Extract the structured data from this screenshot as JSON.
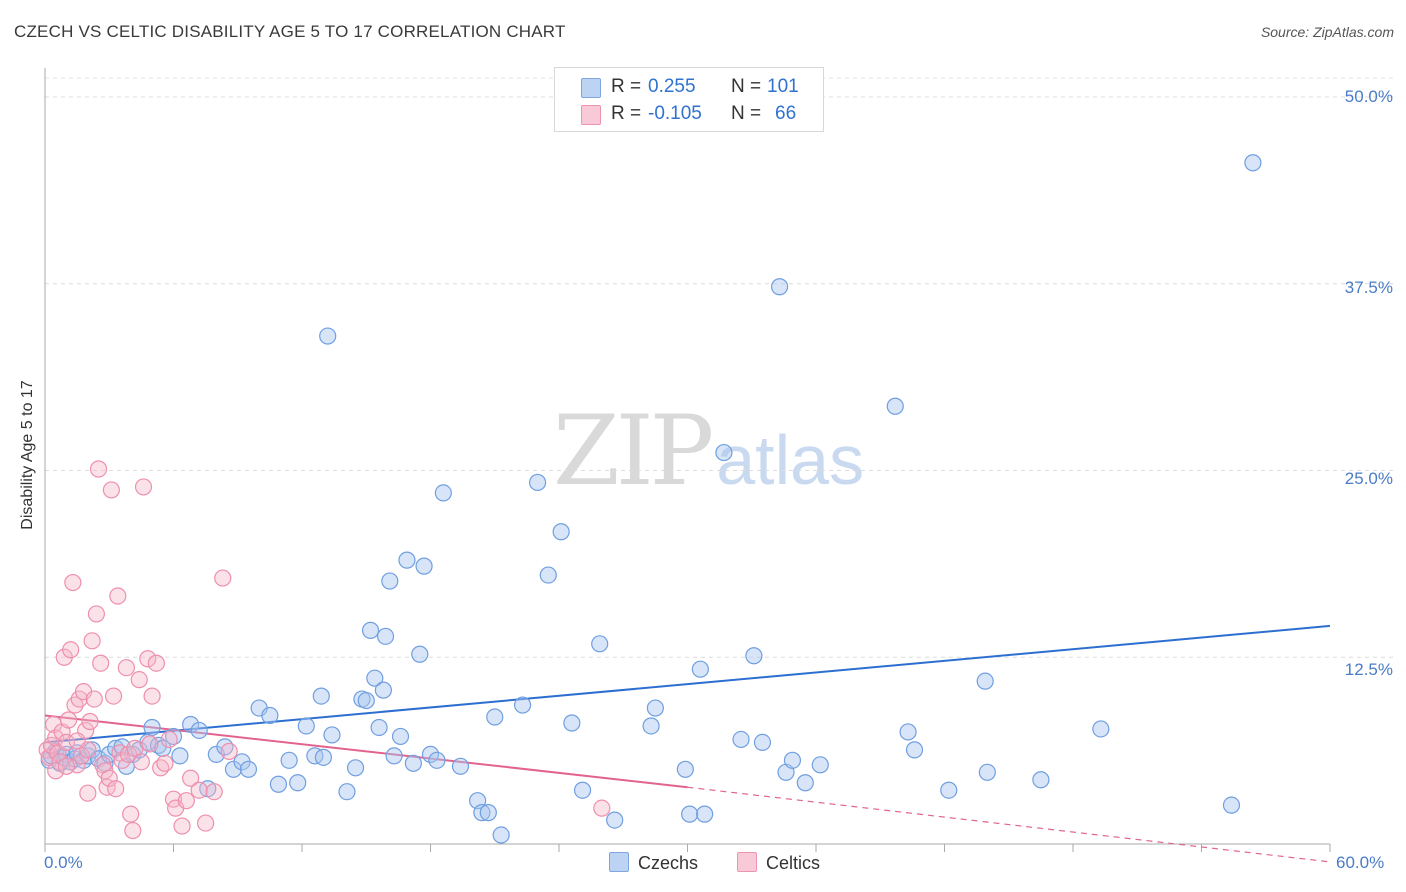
{
  "title": "CZECH VS CELTIC DISABILITY AGE 5 TO 17 CORRELATION CHART",
  "source": "Source: ZipAtlas.com",
  "watermark": {
    "zip": "ZIP",
    "atlas": "atlas"
  },
  "legend": {
    "r_label": "R =",
    "n_label": "N =",
    "rows": [
      {
        "r": "0.255",
        "n": "101",
        "color": "#a9c6f0"
      },
      {
        "r": "-0.105",
        "n": "66",
        "color": "#f6b7c9"
      }
    ]
  },
  "bottom_legend": [
    "Czechs",
    "Celtics"
  ],
  "chart_data": {
    "type": "scatter",
    "title": "CZECH VS CELTIC DISABILITY AGE 5 TO 17 CORRELATION CHART",
    "xlabel": "",
    "ylabel": "Disability Age 5 to 17",
    "xlim": [
      0,
      60
    ],
    "ylim": [
      0,
      50
    ],
    "x_tick_labels": [
      "0.0%",
      "60.0%"
    ],
    "y_tick_values": [
      12.5,
      25.0,
      37.5,
      50.0
    ],
    "y_tick_labels": [
      "12.5%",
      "25.0%",
      "37.5%",
      "50.0%"
    ],
    "grid": true,
    "series": [
      {
        "name": "Czechs",
        "color": "#6f9fe0",
        "trend": {
          "x": [
            0,
            60
          ],
          "y": [
            6.8,
            14.6
          ],
          "color": "#2d6fd1"
        },
        "points": [
          [
            0.2,
            5.6
          ],
          [
            0.3,
            5.9
          ],
          [
            0.5,
            6.2
          ],
          [
            0.7,
            5.4
          ],
          [
            0.9,
            5.8
          ],
          [
            1.0,
            6.0
          ],
          [
            1.2,
            5.5
          ],
          [
            1.4,
            5.7
          ],
          [
            1.5,
            6.1
          ],
          [
            1.8,
            5.6
          ],
          [
            2.0,
            5.9
          ],
          [
            2.2,
            6.3
          ],
          [
            2.5,
            5.7
          ],
          [
            2.8,
            5.4
          ],
          [
            3.0,
            6.0
          ],
          [
            3.3,
            6.4
          ],
          [
            3.6,
            6.5
          ],
          [
            3.8,
            5.2
          ],
          [
            4.1,
            6.0
          ],
          [
            4.4,
            6.3
          ],
          [
            4.8,
            6.8
          ],
          [
            5.0,
            7.8
          ],
          [
            5.3,
            6.6
          ],
          [
            5.5,
            6.4
          ],
          [
            6.0,
            7.2
          ],
          [
            6.3,
            5.9
          ],
          [
            6.8,
            8.0
          ],
          [
            7.2,
            7.6
          ],
          [
            7.6,
            3.7
          ],
          [
            8.0,
            6.0
          ],
          [
            8.4,
            6.5
          ],
          [
            8.8,
            5.0
          ],
          [
            9.2,
            5.5
          ],
          [
            9.5,
            5.0
          ],
          [
            10.0,
            9.1
          ],
          [
            10.5,
            8.6
          ],
          [
            10.9,
            4.0
          ],
          [
            11.4,
            5.6
          ],
          [
            11.8,
            4.1
          ],
          [
            12.2,
            7.9
          ],
          [
            12.6,
            5.9
          ],
          [
            13.0,
            5.8
          ],
          [
            13.4,
            7.3
          ],
          [
            13.2,
            34.0
          ],
          [
            12.9,
            9.9
          ],
          [
            14.1,
            3.5
          ],
          [
            14.5,
            5.1
          ],
          [
            14.8,
            9.7
          ],
          [
            15.0,
            9.6
          ],
          [
            15.2,
            14.3
          ],
          [
            15.4,
            11.1
          ],
          [
            15.6,
            7.8
          ],
          [
            15.8,
            10.3
          ],
          [
            15.9,
            13.9
          ],
          [
            16.1,
            17.6
          ],
          [
            16.3,
            5.9
          ],
          [
            16.6,
            7.2
          ],
          [
            16.9,
            19.0
          ],
          [
            17.2,
            5.4
          ],
          [
            17.5,
            12.7
          ],
          [
            17.7,
            18.6
          ],
          [
            18.0,
            6.0
          ],
          [
            18.3,
            5.6
          ],
          [
            18.6,
            23.5
          ],
          [
            19.4,
            5.2
          ],
          [
            20.2,
            2.9
          ],
          [
            20.4,
            2.1
          ],
          [
            20.7,
            2.1
          ],
          [
            21.0,
            8.5
          ],
          [
            21.3,
            0.6
          ],
          [
            22.3,
            9.3
          ],
          [
            23.0,
            24.2
          ],
          [
            23.5,
            18.0
          ],
          [
            24.1,
            20.9
          ],
          [
            24.6,
            8.1
          ],
          [
            25.1,
            3.6
          ],
          [
            25.9,
            13.4
          ],
          [
            26.6,
            1.6
          ],
          [
            28.3,
            7.9
          ],
          [
            28.5,
            9.1
          ],
          [
            29.9,
            5.0
          ],
          [
            30.1,
            2.0
          ],
          [
            30.6,
            11.7
          ],
          [
            30.8,
            2.0
          ],
          [
            31.7,
            26.2
          ],
          [
            32.5,
            7.0
          ],
          [
            33.1,
            12.6
          ],
          [
            33.5,
            6.8
          ],
          [
            34.3,
            37.3
          ],
          [
            34.6,
            4.8
          ],
          [
            34.9,
            5.6
          ],
          [
            35.5,
            4.1
          ],
          [
            36.2,
            5.3
          ],
          [
            39.7,
            29.3
          ],
          [
            40.3,
            7.5
          ],
          [
            40.6,
            6.3
          ],
          [
            42.2,
            3.6
          ],
          [
            43.9,
            10.9
          ],
          [
            44.0,
            4.8
          ],
          [
            46.5,
            4.3
          ],
          [
            49.3,
            7.7
          ],
          [
            55.4,
            2.6
          ],
          [
            56.4,
            45.6
          ]
        ]
      },
      {
        "name": "Celtics",
        "color": "#ee8fae",
        "trend": {
          "x": [
            0,
            30
          ],
          "y": [
            8.6,
            3.8
          ],
          "dashed_to": [
            60,
            -1.2
          ],
          "color": "#e2638f"
        },
        "points": [
          [
            0.1,
            6.3
          ],
          [
            0.2,
            5.8
          ],
          [
            0.3,
            6.6
          ],
          [
            0.4,
            8.0
          ],
          [
            0.5,
            7.1
          ],
          [
            0.6,
            6.1
          ],
          [
            0.7,
            5.5
          ],
          [
            0.8,
            7.5
          ],
          [
            0.9,
            12.5
          ],
          [
            1.0,
            6.8
          ],
          [
            1.1,
            8.3
          ],
          [
            1.2,
            13.0
          ],
          [
            1.3,
            17.5
          ],
          [
            1.4,
            9.3
          ],
          [
            1.5,
            5.3
          ],
          [
            1.6,
            9.7
          ],
          [
            1.7,
            5.9
          ],
          [
            1.8,
            10.2
          ],
          [
            1.9,
            7.6
          ],
          [
            2.0,
            6.3
          ],
          [
            2.1,
            8.2
          ],
          [
            2.2,
            13.6
          ],
          [
            2.3,
            9.7
          ],
          [
            2.4,
            15.4
          ],
          [
            2.5,
            25.1
          ],
          [
            2.6,
            12.1
          ],
          [
            2.7,
            5.3
          ],
          [
            2.8,
            4.9
          ],
          [
            2.9,
            3.8
          ],
          [
            3.0,
            4.4
          ],
          [
            3.1,
            23.7
          ],
          [
            3.2,
            9.9
          ],
          [
            3.3,
            3.7
          ],
          [
            3.4,
            16.6
          ],
          [
            3.5,
            6.1
          ],
          [
            3.6,
            5.6
          ],
          [
            3.8,
            11.8
          ],
          [
            3.9,
            6.0
          ],
          [
            4.0,
            2.0
          ],
          [
            4.1,
            0.9
          ],
          [
            4.2,
            6.4
          ],
          [
            4.4,
            11.0
          ],
          [
            4.5,
            5.5
          ],
          [
            4.6,
            23.9
          ],
          [
            4.8,
            12.4
          ],
          [
            4.9,
            6.7
          ],
          [
            5.0,
            9.9
          ],
          [
            5.2,
            12.1
          ],
          [
            5.4,
            5.1
          ],
          [
            5.6,
            5.4
          ],
          [
            5.8,
            7.0
          ],
          [
            6.0,
            3.0
          ],
          [
            6.1,
            2.4
          ],
          [
            6.4,
            1.2
          ],
          [
            6.6,
            2.9
          ],
          [
            6.8,
            4.4
          ],
          [
            7.2,
            3.6
          ],
          [
            7.5,
            1.4
          ],
          [
            7.9,
            3.5
          ],
          [
            8.3,
            17.8
          ],
          [
            8.6,
            6.2
          ],
          [
            26.0,
            2.4
          ],
          [
            0.5,
            4.9
          ],
          [
            1.0,
            5.2
          ],
          [
            2.0,
            3.4
          ],
          [
            1.5,
            6.9
          ]
        ]
      }
    ]
  }
}
